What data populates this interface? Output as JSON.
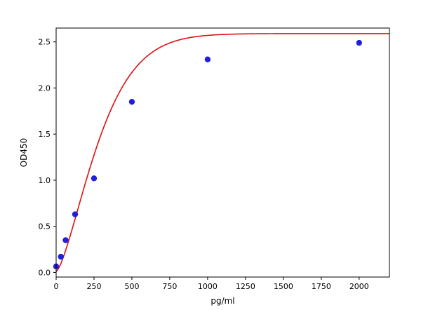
{
  "chart_data": {
    "type": "scatter",
    "title": "",
    "xlabel": "pg/ml",
    "ylabel": "OD450",
    "xlim": [
      0,
      2200
    ],
    "ylim": [
      -0.05,
      2.65
    ],
    "xticks": [
      0,
      250,
      500,
      750,
      1000,
      1250,
      1500,
      1750,
      2000
    ],
    "yticks": [
      0.0,
      0.5,
      1.0,
      1.5,
      2.0,
      2.5
    ],
    "xtick_labels": [
      "0",
      "250",
      "500",
      "750",
      "1000",
      "1250",
      "1500",
      "1750",
      "2000"
    ],
    "ytick_labels": [
      "0.0",
      "0.5",
      "1.0",
      "1.5",
      "2.0",
      "2.5"
    ],
    "grid": false,
    "series": [
      {
        "type": "scatter",
        "color": "#1f1fe0",
        "points": [
          {
            "x": 0,
            "y": 0.065
          },
          {
            "x": 31.25,
            "y": 0.17
          },
          {
            "x": 62.5,
            "y": 0.35
          },
          {
            "x": 125,
            "y": 0.63
          },
          {
            "x": 250,
            "y": 1.02
          },
          {
            "x": 500,
            "y": 1.85
          },
          {
            "x": 1000,
            "y": 2.31
          },
          {
            "x": 2000,
            "y": 2.49
          }
        ]
      },
      {
        "type": "line",
        "color": "#e01010",
        "curve": {
          "A": 2.59,
          "D": 0.01,
          "C": 1.43,
          "k": 0.00303
        }
      }
    ]
  }
}
